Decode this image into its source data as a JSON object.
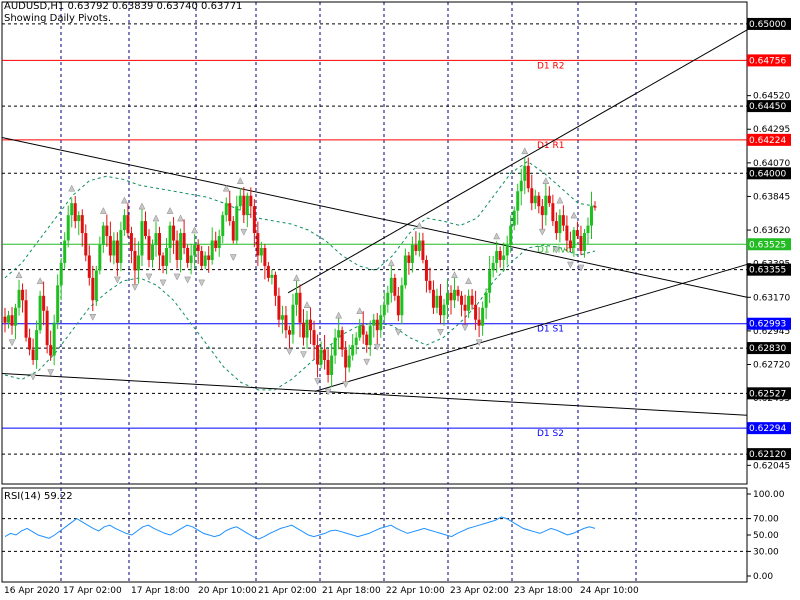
{
  "header": {
    "symbol_line": "AUDUSD,H1  0.63792 0.63839 0.63740 0.63771",
    "subtitle": "Showing Daily Pivots."
  },
  "rsi_header": "RSI(14) 59.22",
  "colors": {
    "bull": "#1fbf1f",
    "bear": "#e01010",
    "pivot_green": "#22bb22",
    "resistance": "#ff0000",
    "support": "#0000ff",
    "grid": "#000080",
    "trend": "#000000",
    "bands": "#0f8f5a",
    "rsi_line": "#1e90ff",
    "level_dashed": "#000000"
  },
  "chart_data": [
    {
      "type": "candlestick",
      "title": "AUDUSD,H1",
      "y_ticks": [
        "0.65000",
        "0.64756",
        "0.64520",
        "0.64450",
        "0.64295",
        "0.64224",
        "0.64070",
        "0.64000",
        "0.63845",
        "0.63620",
        "0.63525",
        "0.63395",
        "0.63355",
        "0.63170",
        "0.62993",
        "0.62945",
        "0.62830",
        "0.62720",
        "0.62527",
        "0.62495",
        "0.62294",
        "0.62120",
        "0.62045"
      ],
      "x_ticks": [
        "16 Apr 2020",
        "17 Apr 02:00",
        "17 Apr 18:00",
        "20 Apr 10:00",
        "21 Apr 02:00",
        "21 Apr 18:00",
        "22 Apr 10:00",
        "23 Apr 02:00",
        "23 Apr 18:00",
        "24 Apr 10:00"
      ],
      "ylim": [
        0.6192,
        0.651
      ],
      "highlighted_levels": [
        {
          "value": 0.65,
          "label": "0.65000",
          "style": "dashed",
          "color": "#000000"
        },
        {
          "value": 0.64756,
          "label": "0.64756",
          "style": "solid",
          "color": "#ff0000",
          "name": "D1 R2"
        },
        {
          "value": 0.6445,
          "label": "0.64450",
          "style": "dashed",
          "color": "#000000"
        },
        {
          "value": 0.64224,
          "label": "0.64224",
          "style": "solid",
          "color": "#ff0000",
          "name": "D1 R1"
        },
        {
          "value": 0.64,
          "label": "0.64000",
          "style": "dashed",
          "color": "#000000"
        },
        {
          "value": 0.63525,
          "label": "0.63525",
          "style": "solid",
          "color": "#22bb22",
          "name": "D1 Pivot"
        },
        {
          "value": 0.63355,
          "label": "0.63355",
          "style": "dashed",
          "color": "#000000"
        },
        {
          "value": 0.62993,
          "label": "0.62993",
          "style": "solid",
          "color": "#0000ff",
          "name": "D1 S1"
        },
        {
          "value": 0.6283,
          "label": "0.62830",
          "style": "dashed",
          "color": "#000000"
        },
        {
          "value": 0.62527,
          "label": "0.62527",
          "style": "dashed",
          "color": "#000000"
        },
        {
          "value": 0.62294,
          "label": "0.62294",
          "style": "solid",
          "color": "#0000ff",
          "name": "D1 S2"
        },
        {
          "value": 0.6212,
          "label": "0.62120",
          "style": "dashed",
          "color": "#000000"
        }
      ],
      "closes": [
        0.63,
        0.6305,
        0.6298,
        0.631,
        0.6322,
        0.6315,
        0.629,
        0.6282,
        0.6275,
        0.6295,
        0.6318,
        0.6308,
        0.6285,
        0.6278,
        0.63,
        0.6325,
        0.634,
        0.6355,
        0.6372,
        0.638,
        0.6368,
        0.6372,
        0.636,
        0.6345,
        0.633,
        0.6315,
        0.6335,
        0.6352,
        0.6365,
        0.6358,
        0.6345,
        0.6355,
        0.634,
        0.6362,
        0.6372,
        0.636,
        0.6348,
        0.6335,
        0.6345,
        0.6368,
        0.6358,
        0.6342,
        0.6352,
        0.636,
        0.6345,
        0.6338,
        0.635,
        0.6365,
        0.6355,
        0.6342,
        0.636,
        0.635,
        0.634,
        0.6345,
        0.6352,
        0.6348,
        0.6338,
        0.6345,
        0.6342,
        0.6355,
        0.635,
        0.6358,
        0.6372,
        0.638,
        0.6368,
        0.6355,
        0.6378,
        0.6385,
        0.6372,
        0.6385,
        0.6378,
        0.636,
        0.6345,
        0.635,
        0.6338,
        0.633,
        0.6332,
        0.6318,
        0.6302,
        0.6305,
        0.6295,
        0.6292,
        0.6312,
        0.632,
        0.63,
        0.629,
        0.6302,
        0.6295,
        0.6285,
        0.6272,
        0.6282,
        0.6275,
        0.6265,
        0.6278,
        0.629,
        0.6295,
        0.6282,
        0.627,
        0.6278,
        0.6285,
        0.629,
        0.6298,
        0.6292,
        0.6285,
        0.6298,
        0.6302,
        0.6295,
        0.6305,
        0.6312,
        0.632,
        0.633,
        0.6318,
        0.6305,
        0.6325,
        0.6345,
        0.634,
        0.6352,
        0.6348,
        0.6355,
        0.6342,
        0.6328,
        0.6322,
        0.631,
        0.6318,
        0.6305,
        0.6312,
        0.632,
        0.6315,
        0.6322,
        0.6318,
        0.6312,
        0.6308,
        0.6318,
        0.6312,
        0.6302,
        0.6298,
        0.631,
        0.632,
        0.6335,
        0.634,
        0.6348,
        0.6342,
        0.6345,
        0.6352,
        0.6365,
        0.6375,
        0.6388,
        0.6395,
        0.6405,
        0.639,
        0.638,
        0.6385,
        0.6378,
        0.6372,
        0.6385,
        0.638,
        0.6368,
        0.636,
        0.6372,
        0.6365,
        0.6355,
        0.635,
        0.6362,
        0.6358,
        0.6348,
        0.636,
        0.6365,
        0.6378,
        0.6377
      ],
      "bands_upper": [
        0.633,
        0.634,
        0.6355,
        0.637,
        0.6385,
        0.6395,
        0.6398,
        0.6396,
        0.6392,
        0.639,
        0.6388,
        0.6386,
        0.6384,
        0.638,
        0.6375,
        0.637,
        0.6368,
        0.6366,
        0.6362,
        0.6355,
        0.6345,
        0.6338,
        0.6335,
        0.6345,
        0.636,
        0.637,
        0.6368,
        0.6365,
        0.637,
        0.6385,
        0.64,
        0.6408,
        0.64,
        0.639,
        0.638,
        0.6378
      ],
      "bands_lower": [
        0.6265,
        0.6262,
        0.6268,
        0.628,
        0.6295,
        0.631,
        0.632,
        0.6328,
        0.633,
        0.6325,
        0.6315,
        0.63,
        0.6285,
        0.627,
        0.626,
        0.6255,
        0.6255,
        0.6262,
        0.6272,
        0.6282,
        0.6292,
        0.6298,
        0.63,
        0.6298,
        0.629,
        0.6285,
        0.629,
        0.63,
        0.6312,
        0.6328,
        0.634,
        0.635,
        0.6352,
        0.635,
        0.6345,
        0.6348
      ],
      "trend_lines": [
        {
          "x0": 0,
          "y0": 0.6424,
          "x1": 1,
          "y1": 0.6317
        },
        {
          "x0": 0,
          "y0": 0.6266,
          "x1": 1,
          "y1": 0.6238
        },
        {
          "x0": 0.384,
          "y0": 0.632,
          "x1": 1,
          "y1": 0.6496
        },
        {
          "x0": 0.42,
          "y0": 0.6254,
          "x1": 1,
          "y1": 0.6339
        }
      ]
    },
    {
      "type": "line",
      "title": "RSI(14) 59.22",
      "ylim": [
        0,
        100
      ],
      "y_ticks": [
        "100.00",
        "70.00",
        "50.00",
        "30.00",
        "0.00"
      ],
      "values": [
        48,
        52,
        50,
        55,
        58,
        54,
        50,
        48,
        46,
        50,
        55,
        60,
        65,
        70,
        66,
        62,
        58,
        55,
        60,
        62,
        58,
        55,
        52,
        50,
        55,
        60,
        62,
        58,
        55,
        52,
        50,
        54,
        58,
        62,
        60,
        56,
        52,
        50,
        48,
        50,
        55,
        58,
        60,
        56,
        52,
        48,
        45,
        48,
        52,
        55,
        58,
        60,
        62,
        58,
        54,
        50,
        48,
        50,
        52,
        55,
        56,
        54,
        52,
        50,
        48,
        50,
        52,
        55,
        58,
        60,
        62,
        58,
        55,
        52,
        54,
        56,
        58,
        56,
        54,
        52,
        50,
        48,
        52,
        55,
        58,
        60,
        62,
        64,
        66,
        68,
        72,
        70,
        66,
        62,
        58,
        56,
        54,
        52,
        55,
        58,
        56,
        53,
        50,
        52,
        55,
        58,
        60,
        58
      ]
    }
  ]
}
